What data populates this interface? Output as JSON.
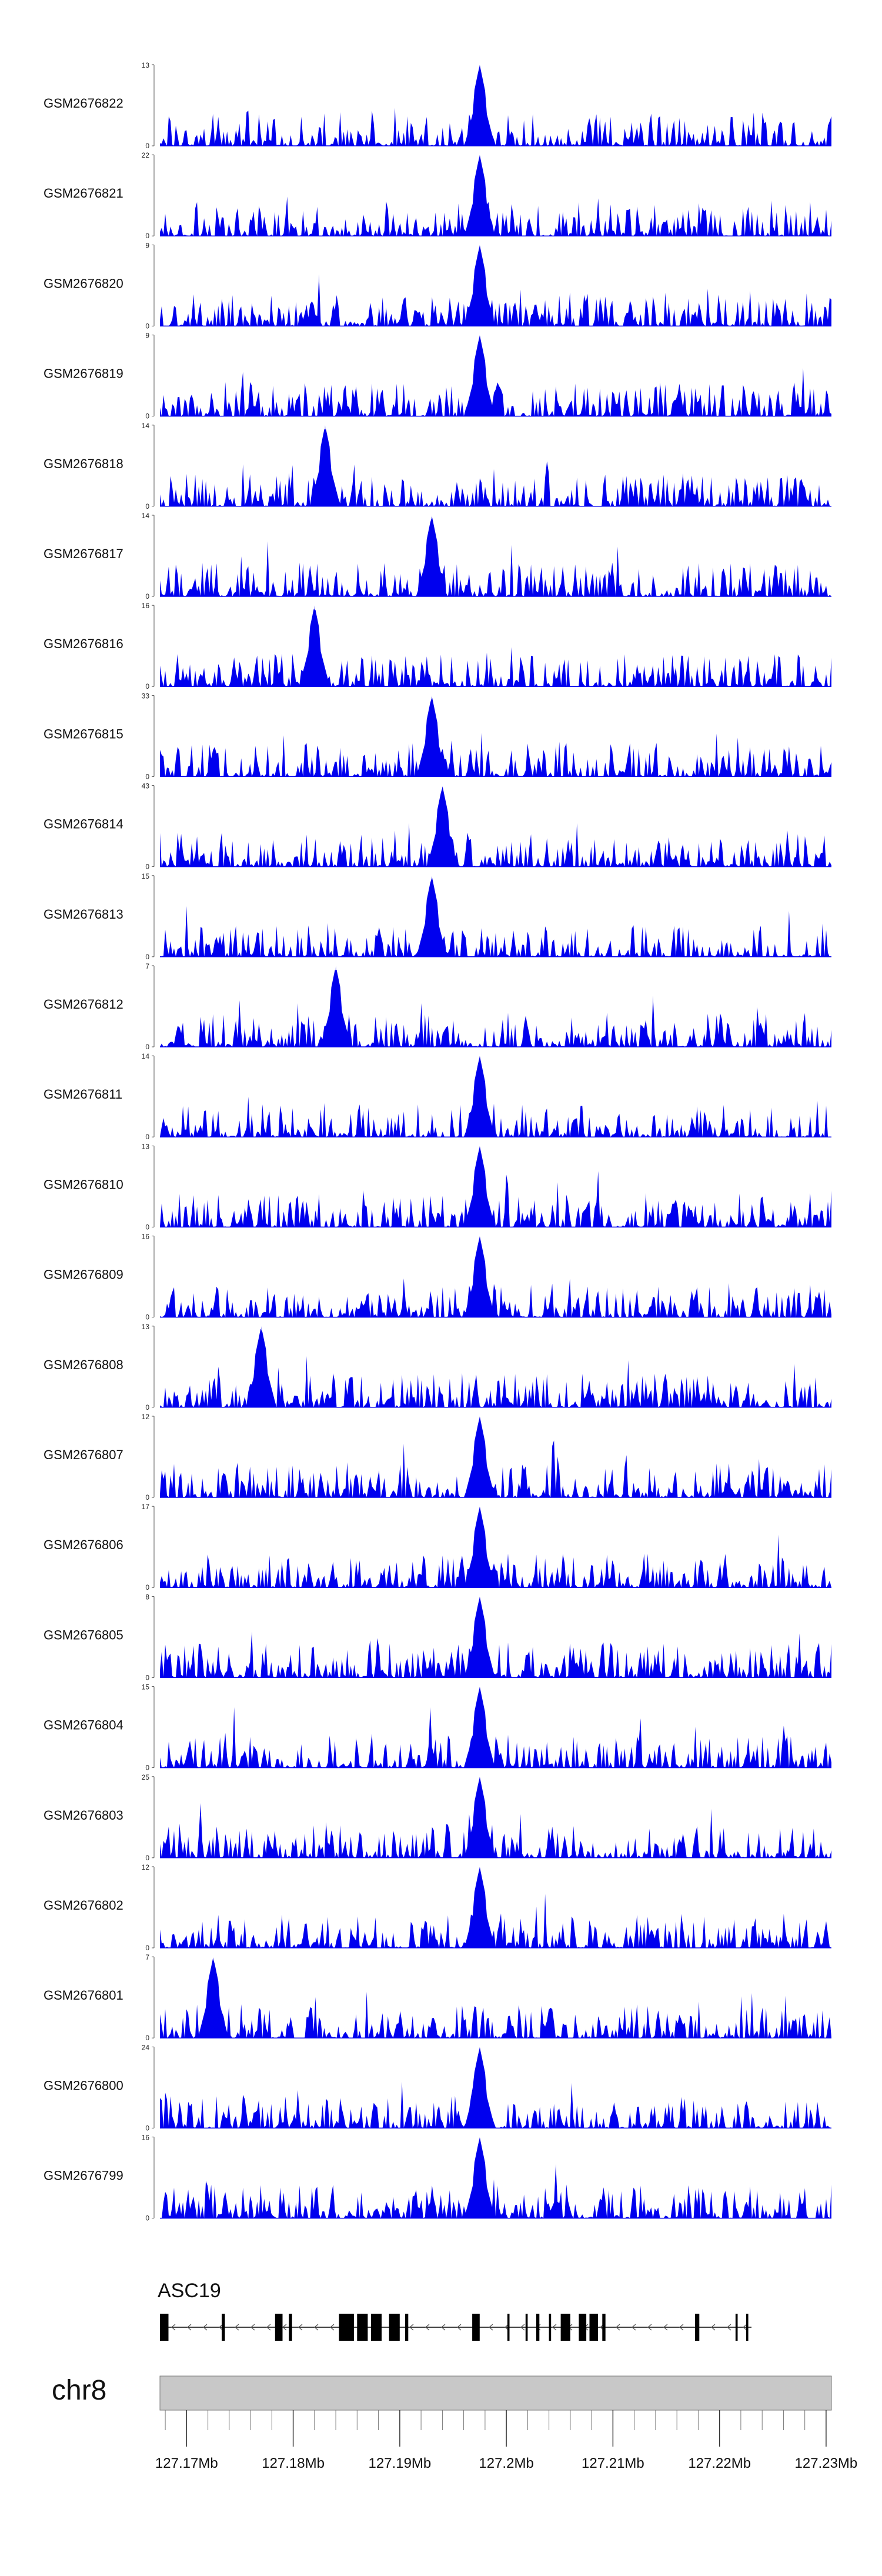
{
  "chart_data": {
    "type": "area",
    "title": "",
    "x_unit": "Mb",
    "xlim": [
      127.1675,
      127.2305
    ],
    "tracks": [
      {
        "name": "GSM2676822",
        "ymax": "13",
        "ymin": "0",
        "max": 13,
        "peak_x": 127.1975,
        "peak_value": 13
      },
      {
        "name": "GSM2676821",
        "ymax": "22",
        "ymin": "0",
        "max": 22,
        "peak_x": 127.1975,
        "peak_value": 22
      },
      {
        "name": "GSM2676820",
        "ymax": "9",
        "ymin": "0",
        "max": 9,
        "peak_x": 127.1975,
        "peak_value": 9
      },
      {
        "name": "GSM2676819",
        "ymax": "9",
        "ymin": "0",
        "max": 9,
        "peak_x": 127.1975,
        "peak_value": 9
      },
      {
        "name": "GSM2676818",
        "ymax": "14",
        "ymin": "0",
        "max": 14,
        "peak_x": 127.183,
        "peak_value": 14
      },
      {
        "name": "GSM2676817",
        "ymax": "14",
        "ymin": "0",
        "max": 14,
        "peak_x": 127.193,
        "peak_value": 14
      },
      {
        "name": "GSM2676816",
        "ymax": "16",
        "ymin": "0",
        "max": 16,
        "peak_x": 127.182,
        "peak_value": 16
      },
      {
        "name": "GSM2676815",
        "ymax": "33",
        "ymin": "0",
        "max": 33,
        "peak_x": 127.193,
        "peak_value": 33
      },
      {
        "name": "GSM2676814",
        "ymax": "43",
        "ymin": "0",
        "max": 43,
        "peak_x": 127.194,
        "peak_value": 43
      },
      {
        "name": "GSM2676813",
        "ymax": "15",
        "ymin": "0",
        "max": 15,
        "peak_x": 127.193,
        "peak_value": 15
      },
      {
        "name": "GSM2676812",
        "ymax": "7",
        "ymin": "0",
        "max": 7,
        "peak_x": 127.184,
        "peak_value": 7
      },
      {
        "name": "GSM2676811",
        "ymax": "14",
        "ymin": "0",
        "max": 14,
        "peak_x": 127.1975,
        "peak_value": 14
      },
      {
        "name": "GSM2676810",
        "ymax": "13",
        "ymin": "0",
        "max": 13,
        "peak_x": 127.1975,
        "peak_value": 13
      },
      {
        "name": "GSM2676809",
        "ymax": "16",
        "ymin": "0",
        "max": 16,
        "peak_x": 127.1975,
        "peak_value": 16
      },
      {
        "name": "GSM2676808",
        "ymax": "13",
        "ymin": "0",
        "max": 13,
        "peak_x": 127.177,
        "peak_value": 13
      },
      {
        "name": "GSM2676807",
        "ymax": "12",
        "ymin": "0",
        "max": 12,
        "peak_x": 127.1975,
        "peak_value": 12
      },
      {
        "name": "GSM2676806",
        "ymax": "17",
        "ymin": "0",
        "max": 17,
        "peak_x": 127.1975,
        "peak_value": 17
      },
      {
        "name": "GSM2676805",
        "ymax": "8",
        "ymin": "0",
        "max": 8,
        "peak_x": 127.1975,
        "peak_value": 8
      },
      {
        "name": "GSM2676804",
        "ymax": "15",
        "ymin": "0",
        "max": 15,
        "peak_x": 127.1975,
        "peak_value": 15
      },
      {
        "name": "GSM2676803",
        "ymax": "25",
        "ymin": "0",
        "max": 25,
        "peak_x": 127.1975,
        "peak_value": 25
      },
      {
        "name": "GSM2676802",
        "ymax": "12",
        "ymin": "0",
        "max": 12,
        "peak_x": 127.1975,
        "peak_value": 12
      },
      {
        "name": "GSM2676801",
        "ymax": "7",
        "ymin": "0",
        "max": 7,
        "peak_x": 127.1725,
        "peak_value": 7
      },
      {
        "name": "GSM2676800",
        "ymax": "24",
        "ymin": "0",
        "max": 24,
        "peak_x": 127.1975,
        "peak_value": 24
      },
      {
        "name": "GSM2676799",
        "ymax": "16",
        "ymin": "0",
        "max": 16,
        "peak_x": 127.1975,
        "peak_value": 16
      }
    ],
    "gene": {
      "name": "ASC19",
      "strand": "-",
      "start": 127.1675,
      "end": 127.223,
      "exons": [
        [
          127.1675,
          127.1683
        ],
        [
          127.1733,
          127.1736
        ],
        [
          127.1783,
          127.179
        ],
        [
          127.1796,
          127.1799
        ],
        [
          127.1843,
          127.1857
        ],
        [
          127.186,
          127.187
        ],
        [
          127.1873,
          127.1883
        ],
        [
          127.189,
          127.19
        ],
        [
          127.1905,
          127.1908
        ],
        [
          127.1968,
          127.1975
        ],
        [
          127.2001,
          127.2003
        ],
        [
          127.2018,
          127.202
        ],
        [
          127.2028,
          127.2031
        ],
        [
          127.204,
          127.2042
        ],
        [
          127.2051,
          127.206
        ],
        [
          127.2068,
          127.2075
        ],
        [
          127.2078,
          127.2086
        ],
        [
          127.209,
          127.2093
        ],
        [
          127.2177,
          127.2181
        ],
        [
          127.2215,
          127.2217
        ],
        [
          127.2225,
          127.2227
        ]
      ]
    },
    "axis": {
      "chromosome": "chr8",
      "ticks": [
        127.17,
        127.18,
        127.19,
        127.2,
        127.21,
        127.22,
        127.23
      ],
      "tick_labels": [
        "127.17Mb",
        "127.18Mb",
        "127.19Mb",
        "127.2Mb",
        "127.21Mb",
        "127.22Mb",
        "127.23Mb"
      ],
      "minor_tick_step": 0.002
    },
    "colors": {
      "signal": "#0000ee",
      "ideogram": "#c8c8c8",
      "ideogram_border": "#777777",
      "exon": "#000000",
      "axis": "#555555"
    }
  }
}
